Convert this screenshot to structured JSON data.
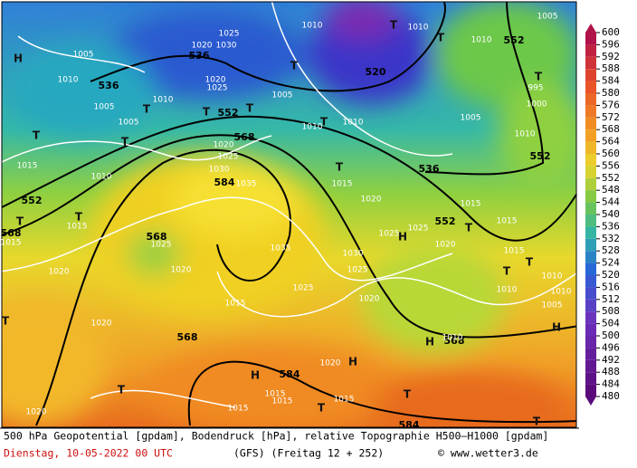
{
  "map": {
    "geopotential_labels": [
      "536",
      "536",
      "520",
      "552",
      "568",
      "552",
      "552",
      "536",
      "552",
      "552",
      "568",
      "584",
      "568",
      "568",
      "568",
      "584",
      "584"
    ],
    "pressure_labels": [
      "1010",
      "1010",
      "1010",
      "1005",
      "1005",
      "1010",
      "1005",
      "1005",
      "1010",
      "1020",
      "1030",
      "1025",
      "1020",
      "1025",
      "1005",
      "1010",
      "1010",
      "1005",
      "1010",
      "1000",
      "995",
      "1015",
      "1010",
      "1020",
      "1025",
      "1030",
      "1035",
      "1015",
      "1020",
      "1015",
      "1025",
      "1025",
      "1020",
      "1015",
      "1015",
      "1030",
      "1025",
      "1035",
      "1025",
      "1020",
      "1015",
      "1015",
      "1025",
      "1020",
      "1020",
      "1015",
      "1020",
      "1010",
      "1010",
      "1010",
      "1005",
      "1020",
      "1015",
      "1015",
      "1015",
      "1020",
      "1015",
      "1010"
    ],
    "centers": [
      "H",
      "T",
      "T",
      "T",
      "T",
      "T",
      "T",
      "T",
      "T",
      "T",
      "T",
      "T",
      "T",
      "T",
      "T",
      "T",
      "T",
      "H",
      "H",
      "H",
      "T",
      "T",
      "T",
      "H",
      "T",
      "H",
      "T"
    ],
    "colorbar": {
      "ticks": [
        600,
        596,
        592,
        588,
        584,
        580,
        576,
        572,
        568,
        564,
        560,
        556,
        552,
        548,
        544,
        540,
        536,
        532,
        528,
        524,
        520,
        516,
        512,
        508,
        504,
        500,
        496,
        492,
        488,
        484,
        480
      ]
    },
    "footer": {
      "line1": "500 hPa Geopotential [gpdam], Bodendruck [hPa], relative Topographie H500–H1000 [gpdam]",
      "date": "Dienstag, 10-05-2022  00 UTC",
      "model": "(GFS)  (Freitag 12 + 252)",
      "credit": "© www.wetter3.de"
    }
  }
}
